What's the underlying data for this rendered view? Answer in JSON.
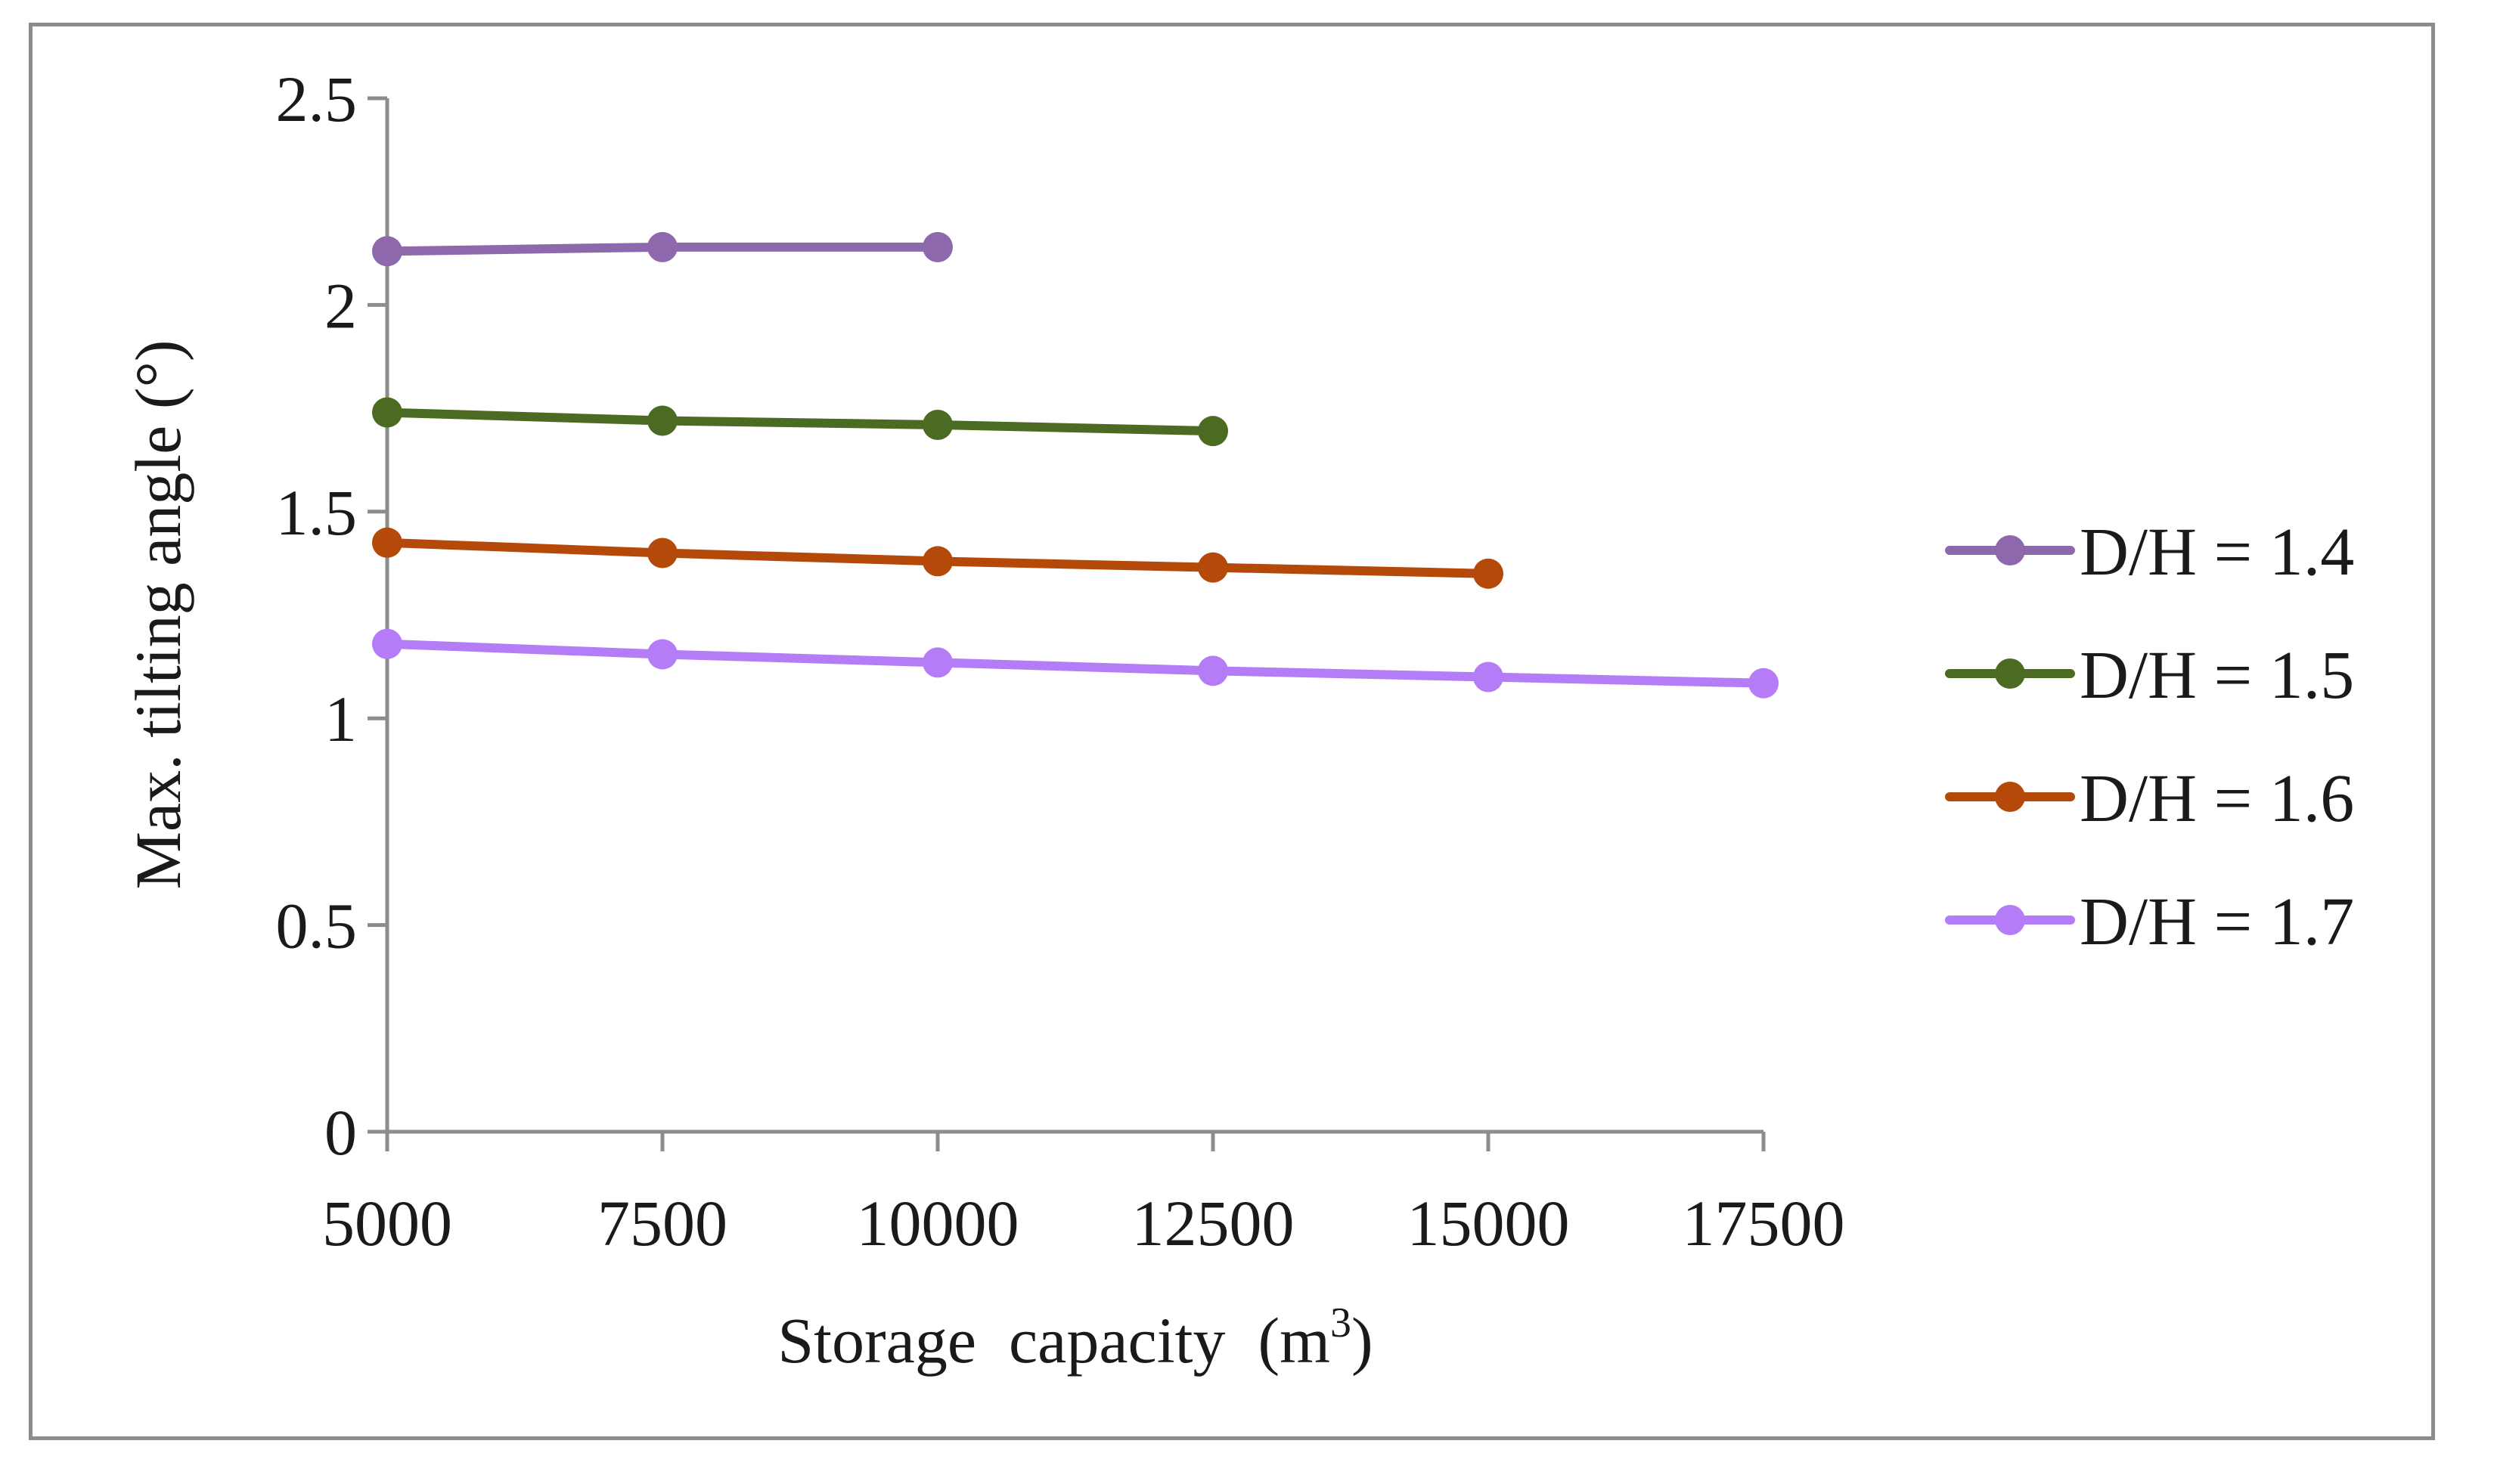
{
  "chart_data": {
    "type": "line",
    "title": "",
    "xlabel": "Storage  capacity  (m",
    "xlabel_sup": "3",
    "xlabel_end": ")",
    "ylabel": "Max. tilting angle (°)",
    "x_ticks": [
      "5000",
      "7500",
      "10000",
      "12500",
      "15000",
      "17500"
    ],
    "y_ticks": [
      "0",
      "0.5",
      "1",
      "1.5",
      "2",
      "2.5"
    ],
    "xlim": [
      5000,
      17500
    ],
    "ylim": [
      0,
      2.5
    ],
    "grid": false,
    "legend_position": "right",
    "series": [
      {
        "name": "D/H = 1.4",
        "color": "#8e68ad",
        "x": [
          5000,
          7500,
          10000
        ],
        "values": [
          2.13,
          2.14,
          2.14
        ]
      },
      {
        "name": "D/H = 1.5",
        "color": "#4b6b23",
        "x": [
          5000,
          7500,
          10000,
          12500
        ],
        "values": [
          1.74,
          1.72,
          1.71,
          1.695
        ]
      },
      {
        "name": "D/H = 1.6",
        "color": "#b4490a",
        "x": [
          5000,
          7500,
          10000,
          12500,
          15000
        ],
        "values": [
          1.425,
          1.4,
          1.38,
          1.365,
          1.35
        ]
      },
      {
        "name": "D/H = 1.7",
        "color": "#b57cf7",
        "x": [
          5000,
          7500,
          10000,
          12500,
          15000,
          17500
        ],
        "values": [
          1.18,
          1.155,
          1.135,
          1.115,
          1.1,
          1.085
        ]
      }
    ]
  }
}
